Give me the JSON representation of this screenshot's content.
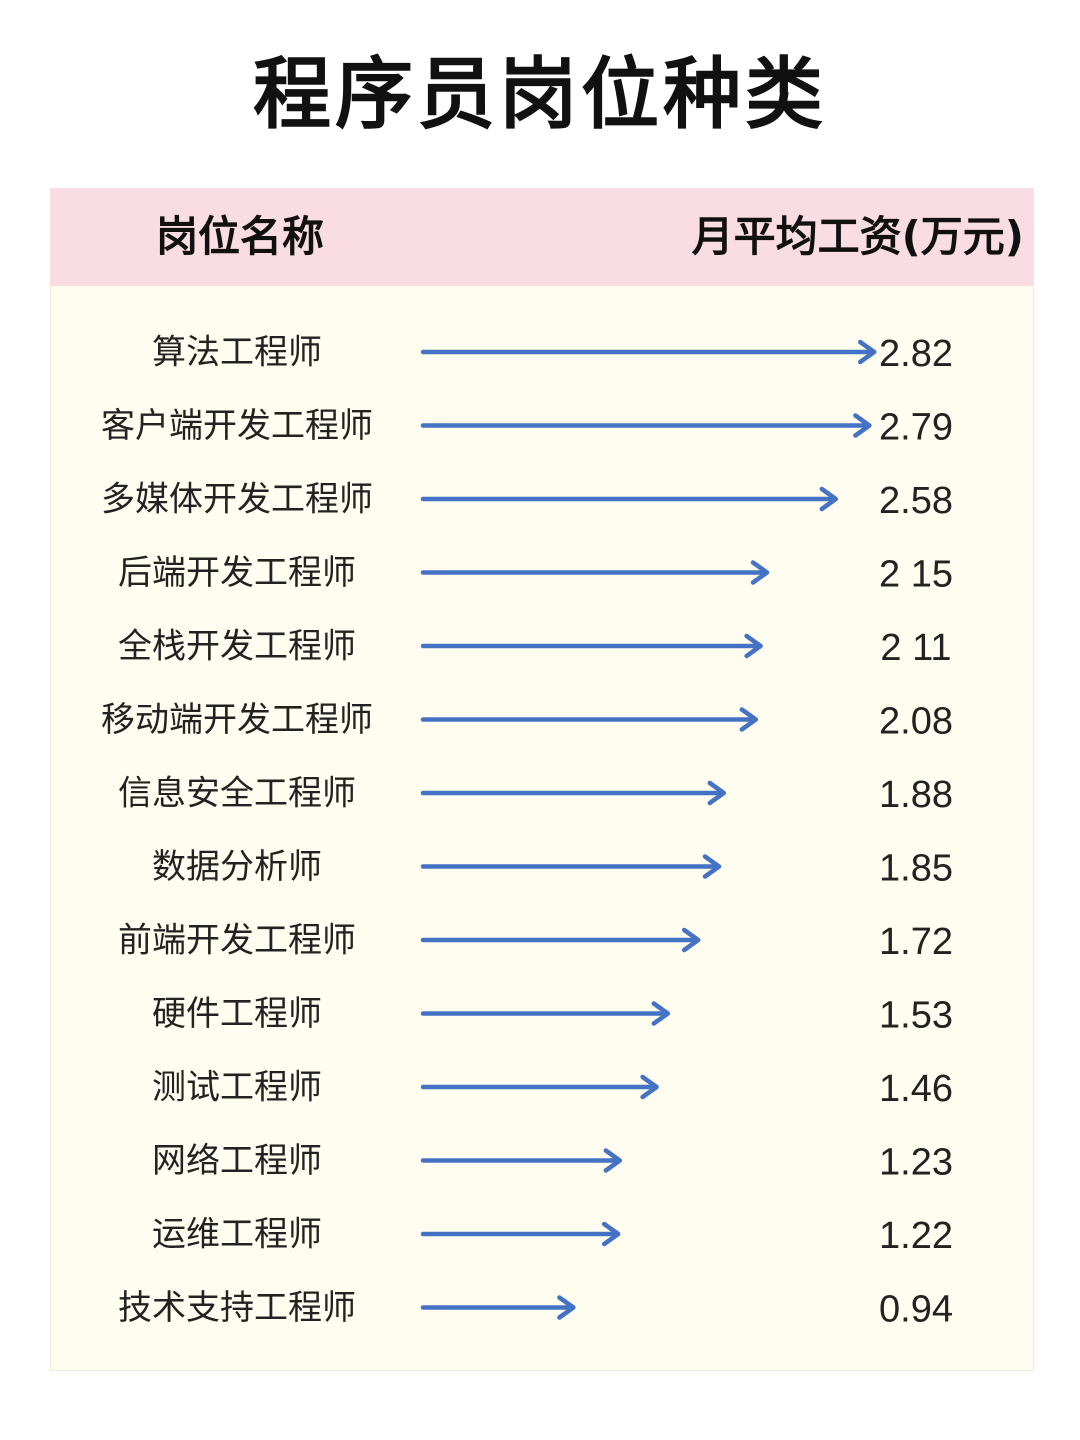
{
  "title": "程序员岗位种类",
  "table_header": {
    "name_col": "岗位名称",
    "value_col": "月平均工资(万元)"
  },
  "colors": {
    "header_bg": "#f9dde3",
    "body_bg": "#fffdf0",
    "arrow": "#4472c4"
  },
  "chart_data": {
    "type": "bar",
    "title": "程序员岗位种类",
    "xlabel": "岗位名称",
    "ylabel": "月平均工资(万元)",
    "categories": [
      "算法工程师",
      "客户端开发工程师",
      "多媒体开发工程师",
      "后端开发工程师",
      "全栈开发工程师",
      "移动端开发工程师",
      "信息安全工程师",
      "数据分析师",
      "前端开发工程师",
      "硬件工程师",
      "测试工程师",
      "网络工程师",
      "运维工程师",
      "技术支持工程师"
    ],
    "values": [
      2.82,
      2.79,
      2.58,
      2.15,
      2.11,
      2.08,
      1.88,
      1.85,
      1.72,
      1.53,
      1.46,
      1.23,
      1.22,
      0.94
    ],
    "value_labels": [
      "2.82",
      "2.79",
      "2.58",
      "2 15",
      "2 11",
      "2.08",
      "1.88",
      "1.85",
      "1.72",
      "1.53",
      "1.46",
      "1.23",
      "1.22",
      "0.94"
    ],
    "orientation": "horizontal",
    "mark": "arrow",
    "grid": false
  }
}
